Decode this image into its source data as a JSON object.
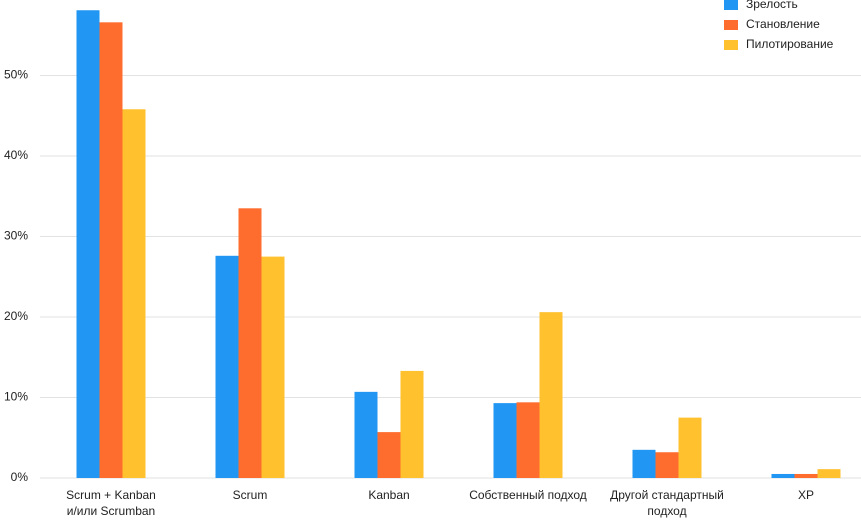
{
  "chart_data": {
    "type": "bar",
    "categories": [
      "Scrum + Kanban\nи/или Scrumban",
      "Scrum",
      "Kanban",
      "Собственный подход",
      "Другой стандартный\nподход",
      "XP"
    ],
    "series": [
      {
        "name": "Зрелость",
        "color": "#2196f3",
        "values": [
          58.1,
          27.6,
          10.7,
          9.3,
          3.5,
          0.5
        ]
      },
      {
        "name": "Становление",
        "color": "#ff6d2e",
        "values": [
          56.6,
          33.5,
          5.7,
          9.4,
          3.2,
          0.5
        ]
      },
      {
        "name": "Пилотирование",
        "color": "#ffc12e",
        "values": [
          45.8,
          27.5,
          13.3,
          20.6,
          7.5,
          1.1
        ]
      }
    ],
    "ylim": [
      0,
      59
    ],
    "yticks": [
      {
        "value": 0,
        "label": "0%"
      },
      {
        "value": 10,
        "label": "10%"
      },
      {
        "value": 20,
        "label": "20%"
      },
      {
        "value": 30,
        "label": "30%"
      },
      {
        "value": 40,
        "label": "40%"
      },
      {
        "value": 50,
        "label": "50%"
      }
    ],
    "grid": true,
    "legend": "top-right"
  }
}
